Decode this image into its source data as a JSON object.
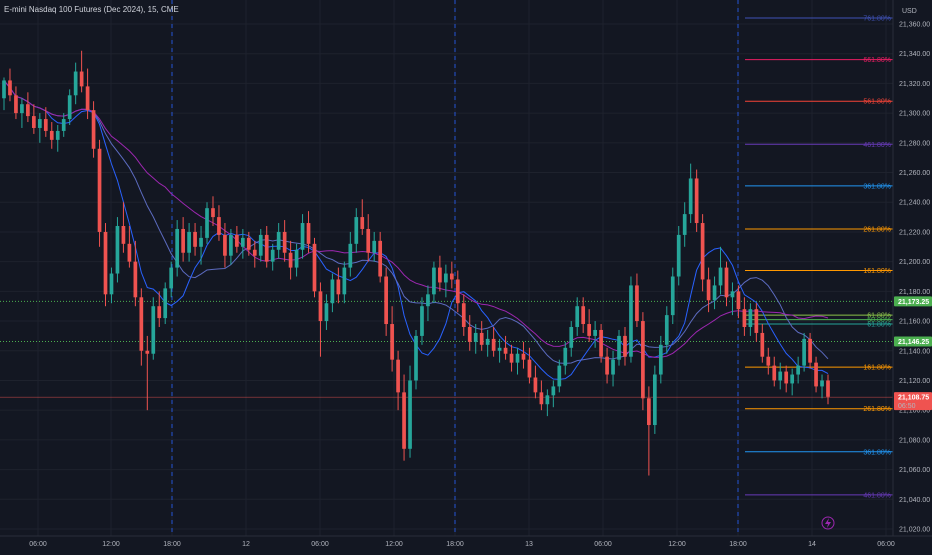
{
  "title": "E-mini Nasdaq 100 Futures (Dec 2024), 15, CME",
  "currency": "USD",
  "colors": {
    "background": "#131722",
    "up": "#26a69a",
    "down": "#ef5350",
    "grid": "#1e222d",
    "session": "#2962ff",
    "green_line": "#4caf50",
    "price_line": "#ef5350"
  },
  "chart_data": {
    "type": "candlestick",
    "title": "E-mini Nasdaq 100 Futures (Dec 2024), 15, CME",
    "ylim": [
      21020,
      21370
    ],
    "y_ticks": [
      "21,360.00",
      "21,340.00",
      "21,320.00",
      "21,300.00",
      "21,280.00",
      "21,260.00",
      "21,240.00",
      "21,220.00",
      "21,200.00",
      "21,180.00",
      "21,160.00",
      "21,140.00",
      "21,120.00",
      "21,100.00",
      "21,080.00",
      "21,060.00",
      "21,040.00",
      "21,020.00"
    ],
    "x_ticks": [
      "06:00",
      "12:00",
      "18:00",
      "12",
      "06:00",
      "12:00",
      "18:00",
      "13",
      "06:00",
      "12:00",
      "18:00",
      "14",
      "06:00"
    ],
    "session_breaks": [
      "18:00",
      "18:00",
      "18:00"
    ],
    "price_tags": [
      {
        "label": "21,173.25",
        "value": 21173.25,
        "color": "#4caf50"
      },
      {
        "label": "21,146.25",
        "value": 21146.25,
        "color": "#4caf50"
      },
      {
        "label": "21,108.75",
        "value": 21108.75,
        "sub": "06:50",
        "color": "#ef5350"
      }
    ],
    "fib_levels": [
      {
        "label": "761.80%",
        "value": 21364,
        "color": "#3f51b5"
      },
      {
        "label": "661.80%",
        "value": 21336,
        "color": "#e91e63"
      },
      {
        "label": "561.80%",
        "value": 21308,
        "color": "#f44336"
      },
      {
        "label": "461.80%",
        "value": 21279,
        "color": "#673ab7"
      },
      {
        "label": "361.80%",
        "value": 21251,
        "color": "#2196f3"
      },
      {
        "label": "261.80%",
        "value": 21222,
        "color": "#ff9800"
      },
      {
        "label": "161.80%",
        "value": 21194,
        "color": "#ff9800"
      },
      {
        "label": "61.80%",
        "value": 21164,
        "color": "#8bc34a"
      },
      {
        "label": "50.00%",
        "value": 21161,
        "color": "#4caf50"
      },
      {
        "label": "61.80%",
        "value": 21158,
        "color": "#26a69a"
      },
      {
        "label": "161.80%",
        "value": 21129,
        "color": "#ff9800"
      },
      {
        "label": "261.80%",
        "value": 21101,
        "color": "#ff9800"
      },
      {
        "label": "361.80%",
        "value": 21072,
        "color": "#2196f3"
      },
      {
        "label": "461.80%",
        "value": 21043,
        "color": "#673ab7"
      }
    ],
    "candles": [
      {
        "t": 0,
        "o": 21310,
        "h": 21324,
        "l": 21302,
        "c": 21322
      },
      {
        "t": 1,
        "o": 21322,
        "h": 21330,
        "l": 21308,
        "c": 21312
      },
      {
        "t": 2,
        "o": 21312,
        "h": 21318,
        "l": 21296,
        "c": 21300
      },
      {
        "t": 3,
        "o": 21300,
        "h": 21310,
        "l": 21290,
        "c": 21306
      },
      {
        "t": 4,
        "o": 21306,
        "h": 21314,
        "l": 21294,
        "c": 21298
      },
      {
        "t": 5,
        "o": 21298,
        "h": 21306,
        "l": 21286,
        "c": 21290
      },
      {
        "t": 6,
        "o": 21290,
        "h": 21300,
        "l": 21280,
        "c": 21296
      },
      {
        "t": 7,
        "o": 21296,
        "h": 21304,
        "l": 21284,
        "c": 21288
      },
      {
        "t": 8,
        "o": 21288,
        "h": 21294,
        "l": 21276,
        "c": 21282
      },
      {
        "t": 9,
        "o": 21282,
        "h": 21292,
        "l": 21274,
        "c": 21288
      },
      {
        "t": 10,
        "o": 21288,
        "h": 21300,
        "l": 21284,
        "c": 21296
      },
      {
        "t": 11,
        "o": 21296,
        "h": 21316,
        "l": 21292,
        "c": 21312
      },
      {
        "t": 12,
        "o": 21312,
        "h": 21334,
        "l": 21306,
        "c": 21328
      },
      {
        "t": 13,
        "o": 21328,
        "h": 21342,
        "l": 21314,
        "c": 21318
      },
      {
        "t": 14,
        "o": 21318,
        "h": 21330,
        "l": 21296,
        "c": 21302
      },
      {
        "t": 15,
        "o": 21302,
        "h": 21308,
        "l": 21270,
        "c": 21276
      },
      {
        "t": 16,
        "o": 21276,
        "h": 21282,
        "l": 21210,
        "c": 21220
      },
      {
        "t": 17,
        "o": 21220,
        "h": 21226,
        "l": 21170,
        "c": 21178
      },
      {
        "t": 18,
        "o": 21178,
        "h": 21196,
        "l": 21172,
        "c": 21192
      },
      {
        "t": 19,
        "o": 21192,
        "h": 21230,
        "l": 21186,
        "c": 21224
      },
      {
        "t": 20,
        "o": 21224,
        "h": 21240,
        "l": 21206,
        "c": 21212
      },
      {
        "t": 21,
        "o": 21212,
        "h": 21224,
        "l": 21196,
        "c": 21200
      },
      {
        "t": 22,
        "o": 21200,
        "h": 21214,
        "l": 21170,
        "c": 21176
      },
      {
        "t": 23,
        "o": 21176,
        "h": 21182,
        "l": 21130,
        "c": 21140
      },
      {
        "t": 24,
        "o": 21140,
        "h": 21150,
        "l": 21100,
        "c": 21138
      },
      {
        "t": 25,
        "o": 21138,
        "h": 21176,
        "l": 21134,
        "c": 21170
      },
      {
        "t": 26,
        "o": 21170,
        "h": 21180,
        "l": 21156,
        "c": 21162
      },
      {
        "t": 27,
        "o": 21162,
        "h": 21186,
        "l": 21158,
        "c": 21182
      },
      {
        "t": 28,
        "o": 21182,
        "h": 21200,
        "l": 21176,
        "c": 21196
      },
      {
        "t": 29,
        "o": 21196,
        "h": 21228,
        "l": 21190,
        "c": 21222
      },
      {
        "t": 30,
        "o": 21222,
        "h": 21230,
        "l": 21200,
        "c": 21206
      },
      {
        "t": 31,
        "o": 21206,
        "h": 21226,
        "l": 21200,
        "c": 21220
      },
      {
        "t": 32,
        "o": 21220,
        "h": 21226,
        "l": 21204,
        "c": 21210
      },
      {
        "t": 33,
        "o": 21210,
        "h": 21224,
        "l": 21198,
        "c": 21216
      },
      {
        "t": 34,
        "o": 21216,
        "h": 21240,
        "l": 21212,
        "c": 21236
      },
      {
        "t": 35,
        "o": 21236,
        "h": 21244,
        "l": 21224,
        "c": 21230
      },
      {
        "t": 36,
        "o": 21230,
        "h": 21238,
        "l": 21214,
        "c": 21218
      },
      {
        "t": 37,
        "o": 21218,
        "h": 21226,
        "l": 21196,
        "c": 21204
      },
      {
        "t": 38,
        "o": 21204,
        "h": 21222,
        "l": 21198,
        "c": 21218
      },
      {
        "t": 39,
        "o": 21218,
        "h": 21224,
        "l": 21206,
        "c": 21210
      },
      {
        "t": 40,
        "o": 21210,
        "h": 21222,
        "l": 21202,
        "c": 21216
      },
      {
        "t": 41,
        "o": 21216,
        "h": 21220,
        "l": 21204,
        "c": 21208
      },
      {
        "t": 42,
        "o": 21208,
        "h": 21214,
        "l": 21196,
        "c": 21204
      },
      {
        "t": 43,
        "o": 21204,
        "h": 21222,
        "l": 21200,
        "c": 21218
      },
      {
        "t": 44,
        "o": 21218,
        "h": 21224,
        "l": 21196,
        "c": 21200
      },
      {
        "t": 45,
        "o": 21200,
        "h": 21212,
        "l": 21194,
        "c": 21208
      },
      {
        "t": 46,
        "o": 21208,
        "h": 21226,
        "l": 21202,
        "c": 21220
      },
      {
        "t": 47,
        "o": 21220,
        "h": 21228,
        "l": 21200,
        "c": 21206
      },
      {
        "t": 48,
        "o": 21206,
        "h": 21214,
        "l": 21188,
        "c": 21196
      },
      {
        "t": 49,
        "o": 21196,
        "h": 21212,
        "l": 21190,
        "c": 21208
      },
      {
        "t": 50,
        "o": 21208,
        "h": 21232,
        "l": 21202,
        "c": 21226
      },
      {
        "t": 51,
        "o": 21226,
        "h": 21234,
        "l": 21206,
        "c": 21212
      },
      {
        "t": 52,
        "o": 21212,
        "h": 21216,
        "l": 21176,
        "c": 21180
      },
      {
        "t": 53,
        "o": 21180,
        "h": 21186,
        "l": 21136,
        "c": 21160
      },
      {
        "t": 54,
        "o": 21160,
        "h": 21178,
        "l": 21154,
        "c": 21172
      },
      {
        "t": 55,
        "o": 21172,
        "h": 21192,
        "l": 21166,
        "c": 21188
      },
      {
        "t": 56,
        "o": 21188,
        "h": 21196,
        "l": 21172,
        "c": 21178
      },
      {
        "t": 57,
        "o": 21178,
        "h": 21200,
        "l": 21172,
        "c": 21196
      },
      {
        "t": 58,
        "o": 21196,
        "h": 21220,
        "l": 21190,
        "c": 21212
      },
      {
        "t": 59,
        "o": 21212,
        "h": 21236,
        "l": 21206,
        "c": 21230
      },
      {
        "t": 60,
        "o": 21230,
        "h": 21242,
        "l": 21218,
        "c": 21222
      },
      {
        "t": 61,
        "o": 21222,
        "h": 21232,
        "l": 21200,
        "c": 21206
      },
      {
        "t": 62,
        "o": 21206,
        "h": 21220,
        "l": 21200,
        "c": 21214
      },
      {
        "t": 63,
        "o": 21214,
        "h": 21220,
        "l": 21186,
        "c": 21190
      },
      {
        "t": 64,
        "o": 21190,
        "h": 21196,
        "l": 21150,
        "c": 21158
      },
      {
        "t": 65,
        "o": 21158,
        "h": 21170,
        "l": 21126,
        "c": 21134
      },
      {
        "t": 66,
        "o": 21134,
        "h": 21140,
        "l": 21100,
        "c": 21112
      },
      {
        "t": 67,
        "o": 21112,
        "h": 21124,
        "l": 21066,
        "c": 21074
      },
      {
        "t": 68,
        "o": 21074,
        "h": 21130,
        "l": 21068,
        "c": 21120
      },
      {
        "t": 69,
        "o": 21120,
        "h": 21154,
        "l": 21114,
        "c": 21150
      },
      {
        "t": 70,
        "o": 21150,
        "h": 21176,
        "l": 21144,
        "c": 21170
      },
      {
        "t": 71,
        "o": 21170,
        "h": 21184,
        "l": 21160,
        "c": 21178
      },
      {
        "t": 72,
        "o": 21178,
        "h": 21200,
        "l": 21172,
        "c": 21196
      },
      {
        "t": 73,
        "o": 21196,
        "h": 21204,
        "l": 21180,
        "c": 21186
      },
      {
        "t": 74,
        "o": 21186,
        "h": 21198,
        "l": 21176,
        "c": 21192
      },
      {
        "t": 75,
        "o": 21192,
        "h": 21200,
        "l": 21182,
        "c": 21188
      },
      {
        "t": 76,
        "o": 21188,
        "h": 21194,
        "l": 21166,
        "c": 21172
      },
      {
        "t": 77,
        "o": 21172,
        "h": 21178,
        "l": 21150,
        "c": 21156
      },
      {
        "t": 78,
        "o": 21156,
        "h": 21164,
        "l": 21140,
        "c": 21146
      },
      {
        "t": 79,
        "o": 21146,
        "h": 21158,
        "l": 21138,
        "c": 21152
      },
      {
        "t": 80,
        "o": 21152,
        "h": 21160,
        "l": 21140,
        "c": 21144
      },
      {
        "t": 81,
        "o": 21144,
        "h": 21154,
        "l": 21136,
        "c": 21148
      },
      {
        "t": 82,
        "o": 21148,
        "h": 21156,
        "l": 21136,
        "c": 21140
      },
      {
        "t": 83,
        "o": 21140,
        "h": 21148,
        "l": 21132,
        "c": 21142
      },
      {
        "t": 84,
        "o": 21142,
        "h": 21150,
        "l": 21134,
        "c": 21138
      },
      {
        "t": 85,
        "o": 21138,
        "h": 21144,
        "l": 21126,
        "c": 21132
      },
      {
        "t": 86,
        "o": 21132,
        "h": 21142,
        "l": 21124,
        "c": 21138
      },
      {
        "t": 87,
        "o": 21138,
        "h": 21146,
        "l": 21128,
        "c": 21134
      },
      {
        "t": 88,
        "o": 21134,
        "h": 21142,
        "l": 21118,
        "c": 21122
      },
      {
        "t": 89,
        "o": 21122,
        "h": 21130,
        "l": 21108,
        "c": 21112
      },
      {
        "t": 90,
        "o": 21112,
        "h": 21120,
        "l": 21100,
        "c": 21104
      },
      {
        "t": 91,
        "o": 21104,
        "h": 21114,
        "l": 21096,
        "c": 21110
      },
      {
        "t": 92,
        "o": 21110,
        "h": 21120,
        "l": 21102,
        "c": 21116
      },
      {
        "t": 93,
        "o": 21116,
        "h": 21134,
        "l": 21112,
        "c": 21130
      },
      {
        "t": 94,
        "o": 21130,
        "h": 21146,
        "l": 21124,
        "c": 21142
      },
      {
        "t": 95,
        "o": 21142,
        "h": 21160,
        "l": 21136,
        "c": 21156
      },
      {
        "t": 96,
        "o": 21156,
        "h": 21176,
        "l": 21150,
        "c": 21170
      },
      {
        "t": 97,
        "o": 21170,
        "h": 21176,
        "l": 21152,
        "c": 21158
      },
      {
        "t": 98,
        "o": 21158,
        "h": 21168,
        "l": 21146,
        "c": 21150
      },
      {
        "t": 99,
        "o": 21150,
        "h": 21160,
        "l": 21142,
        "c": 21154
      },
      {
        "t": 100,
        "o": 21154,
        "h": 21158,
        "l": 21132,
        "c": 21136
      },
      {
        "t": 101,
        "o": 21136,
        "h": 21142,
        "l": 21118,
        "c": 21124
      },
      {
        "t": 102,
        "o": 21124,
        "h": 21140,
        "l": 21116,
        "c": 21134
      },
      {
        "t": 103,
        "o": 21134,
        "h": 21154,
        "l": 21130,
        "c": 21150
      },
      {
        "t": 104,
        "o": 21150,
        "h": 21156,
        "l": 21130,
        "c": 21136
      },
      {
        "t": 105,
        "o": 21136,
        "h": 21190,
        "l": 21132,
        "c": 21184
      },
      {
        "t": 106,
        "o": 21184,
        "h": 21192,
        "l": 21156,
        "c": 21160
      },
      {
        "t": 107,
        "o": 21160,
        "h": 21166,
        "l": 21100,
        "c": 21108
      },
      {
        "t": 108,
        "o": 21108,
        "h": 21116,
        "l": 21056,
        "c": 21090
      },
      {
        "t": 109,
        "o": 21090,
        "h": 21130,
        "l": 21084,
        "c": 21124
      },
      {
        "t": 110,
        "o": 21124,
        "h": 21150,
        "l": 21118,
        "c": 21144
      },
      {
        "t": 111,
        "o": 21144,
        "h": 21170,
        "l": 21138,
        "c": 21164
      },
      {
        "t": 112,
        "o": 21164,
        "h": 21196,
        "l": 21158,
        "c": 21190
      },
      {
        "t": 113,
        "o": 21190,
        "h": 21224,
        "l": 21184,
        "c": 21218
      },
      {
        "t": 114,
        "o": 21218,
        "h": 21240,
        "l": 21210,
        "c": 21232
      },
      {
        "t": 115,
        "o": 21232,
        "h": 21266,
        "l": 21226,
        "c": 21256
      },
      {
        "t": 116,
        "o": 21256,
        "h": 21262,
        "l": 21220,
        "c": 21226
      },
      {
        "t": 117,
        "o": 21226,
        "h": 21232,
        "l": 21180,
        "c": 21188
      },
      {
        "t": 118,
        "o": 21188,
        "h": 21196,
        "l": 21166,
        "c": 21174
      },
      {
        "t": 119,
        "o": 21174,
        "h": 21190,
        "l": 21168,
        "c": 21184
      },
      {
        "t": 120,
        "o": 21184,
        "h": 21210,
        "l": 21178,
        "c": 21196
      },
      {
        "t": 121,
        "o": 21196,
        "h": 21200,
        "l": 21170,
        "c": 21176
      },
      {
        "t": 122,
        "o": 21176,
        "h": 21186,
        "l": 21164,
        "c": 21180
      },
      {
        "t": 123,
        "o": 21180,
        "h": 21184,
        "l": 21162,
        "c": 21168
      },
      {
        "t": 124,
        "o": 21168,
        "h": 21176,
        "l": 21150,
        "c": 21156
      },
      {
        "t": 125,
        "o": 21156,
        "h": 21172,
        "l": 21150,
        "c": 21168
      },
      {
        "t": 126,
        "o": 21168,
        "h": 21172,
        "l": 21146,
        "c": 21152
      },
      {
        "t": 127,
        "o": 21152,
        "h": 21158,
        "l": 21132,
        "c": 21136
      },
      {
        "t": 128,
        "o": 21136,
        "h": 21142,
        "l": 21124,
        "c": 21130
      },
      {
        "t": 129,
        "o": 21130,
        "h": 21136,
        "l": 21116,
        "c": 21120
      },
      {
        "t": 130,
        "o": 21120,
        "h": 21132,
        "l": 21114,
        "c": 21126
      },
      {
        "t": 131,
        "o": 21126,
        "h": 21130,
        "l": 21112,
        "c": 21118
      },
      {
        "t": 132,
        "o": 21118,
        "h": 21128,
        "l": 21110,
        "c": 21124
      },
      {
        "t": 133,
        "o": 21124,
        "h": 21136,
        "l": 21118,
        "c": 21130
      },
      {
        "t": 134,
        "o": 21130,
        "h": 21152,
        "l": 21126,
        "c": 21148
      },
      {
        "t": 135,
        "o": 21148,
        "h": 21152,
        "l": 21128,
        "c": 21132
      },
      {
        "t": 136,
        "o": 21132,
        "h": 21136,
        "l": 21112,
        "c": 21116
      },
      {
        "t": 137,
        "o": 21116,
        "h": 21124,
        "l": 21108,
        "c": 21120
      },
      {
        "t": 138,
        "o": 21120,
        "h": 21124,
        "l": 21104,
        "c": 21109
      }
    ],
    "moving_averages": [
      {
        "window": 8,
        "color": "#2962ff"
      },
      {
        "window": 16,
        "color": "#5c6bc0"
      },
      {
        "window": 28,
        "color": "#9c27b0"
      }
    ]
  }
}
